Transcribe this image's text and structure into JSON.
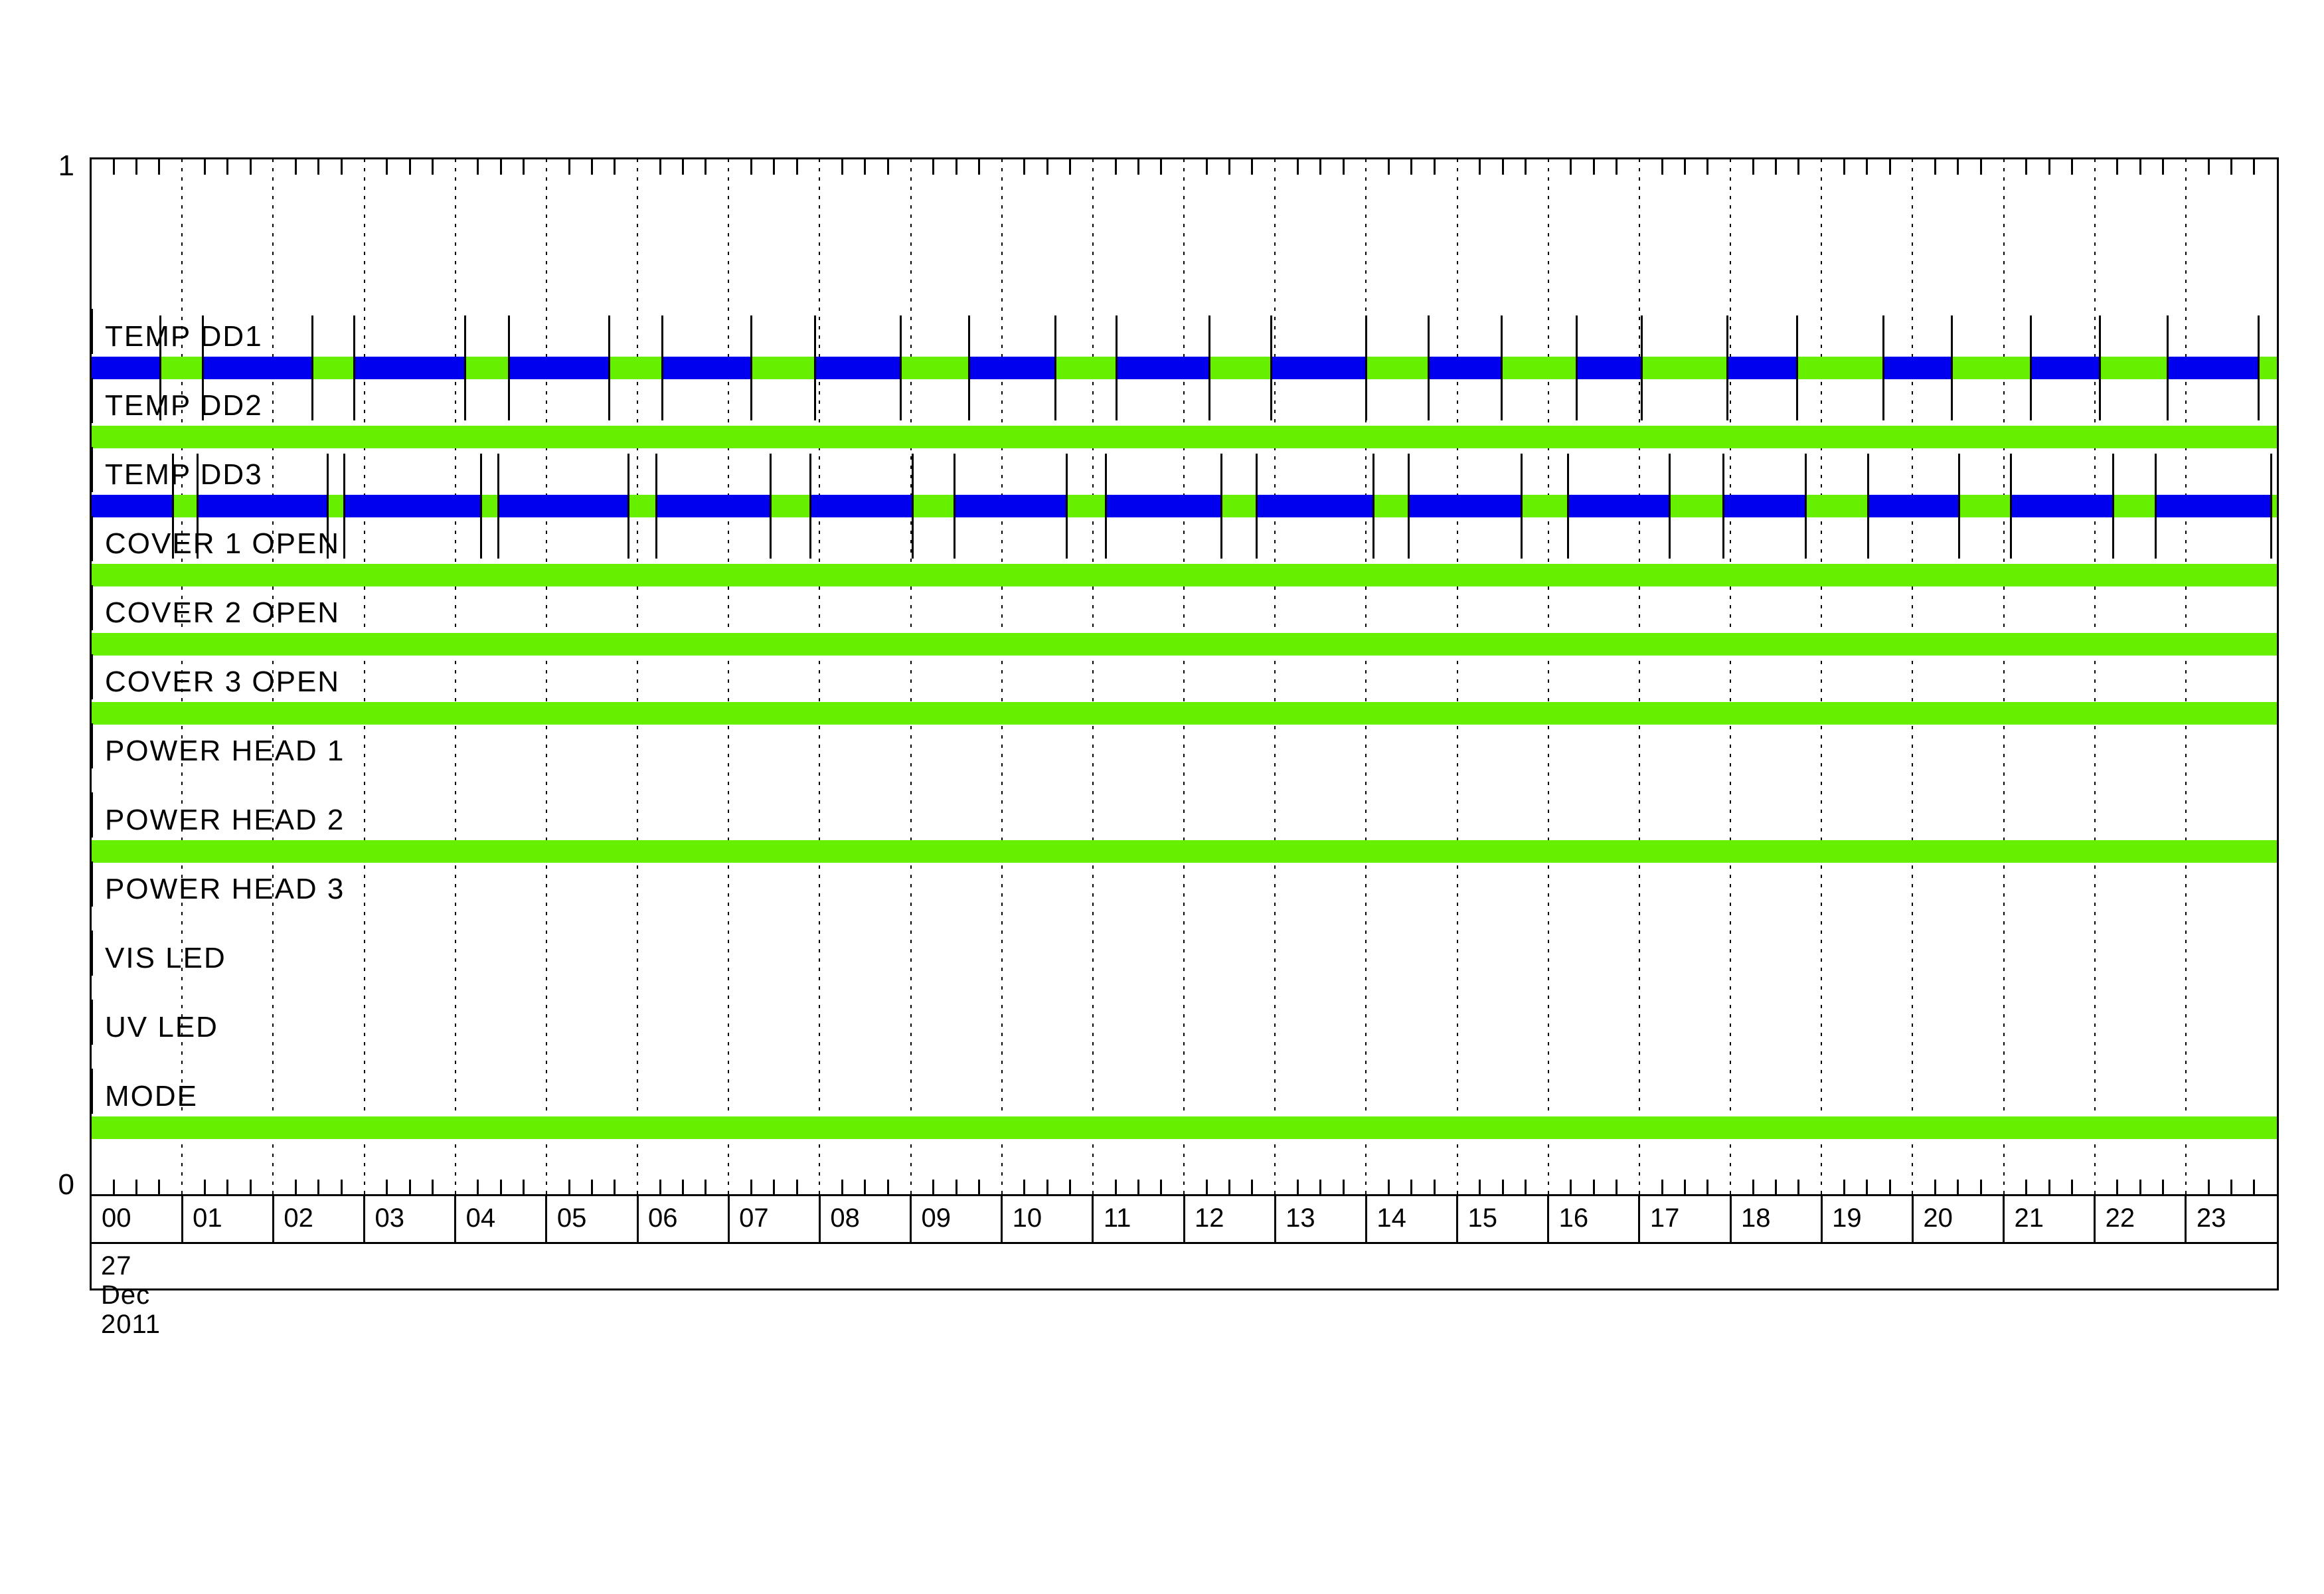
{
  "y_axis": {
    "top_label": "1",
    "bottom_label": "0"
  },
  "x_axis": {
    "hour_labels": [
      "00",
      "01",
      "02",
      "03",
      "04",
      "05",
      "06",
      "07",
      "08",
      "09",
      "10",
      "11",
      "12",
      "13",
      "14",
      "15",
      "16",
      "17",
      "18",
      "19",
      "20",
      "21",
      "22",
      "23"
    ],
    "date_label": "27 Dec 2011"
  },
  "colors": {
    "green": "#66F000",
    "blue": "#0000EE",
    "line": "#000000"
  },
  "chart_data": {
    "type": "status-timeline",
    "date": "27 Dec 2011",
    "x_range_hours": [
      0,
      24
    ],
    "x_tick_interval_hours": 1,
    "x_minor_tick_interval_hours": 0.25,
    "ylim": [
      0,
      1
    ],
    "grid": "dotted-hourly",
    "rows": [
      {
        "label": "TEMP DD1",
        "segments": [
          {
            "s": 0,
            "e": 0.76,
            "c": "blue"
          },
          {
            "s": 0.76,
            "e": 1.23,
            "c": "green"
          },
          {
            "s": 1.23,
            "e": 2.43,
            "c": "blue"
          },
          {
            "s": 2.43,
            "e": 2.89,
            "c": "green"
          },
          {
            "s": 2.89,
            "e": 4.11,
            "c": "blue"
          },
          {
            "s": 4.11,
            "e": 4.59,
            "c": "green"
          },
          {
            "s": 4.59,
            "e": 5.69,
            "c": "blue"
          },
          {
            "s": 5.69,
            "e": 6.27,
            "c": "green"
          },
          {
            "s": 6.27,
            "e": 7.25,
            "c": "blue"
          },
          {
            "s": 7.25,
            "e": 7.95,
            "c": "green"
          },
          {
            "s": 7.95,
            "e": 8.89,
            "c": "blue"
          },
          {
            "s": 8.89,
            "e": 9.64,
            "c": "green"
          },
          {
            "s": 9.64,
            "e": 10.59,
            "c": "blue"
          },
          {
            "s": 10.59,
            "e": 11.26,
            "c": "green"
          },
          {
            "s": 11.26,
            "e": 12.28,
            "c": "blue"
          },
          {
            "s": 12.28,
            "e": 12.96,
            "c": "green"
          },
          {
            "s": 12.96,
            "e": 14.0,
            "c": "blue"
          },
          {
            "s": 14.0,
            "e": 14.69,
            "c": "green"
          },
          {
            "s": 14.69,
            "e": 15.49,
            "c": "blue"
          },
          {
            "s": 15.49,
            "e": 16.31,
            "c": "green"
          },
          {
            "s": 16.31,
            "e": 17.03,
            "c": "blue"
          },
          {
            "s": 17.03,
            "e": 17.97,
            "c": "green"
          },
          {
            "s": 17.97,
            "e": 18.73,
            "c": "blue"
          },
          {
            "s": 18.73,
            "e": 19.68,
            "c": "green"
          },
          {
            "s": 19.68,
            "e": 20.43,
            "c": "blue"
          },
          {
            "s": 20.43,
            "e": 21.3,
            "c": "green"
          },
          {
            "s": 21.3,
            "e": 22.06,
            "c": "blue"
          },
          {
            "s": 22.06,
            "e": 22.8,
            "c": "green"
          },
          {
            "s": 22.8,
            "e": 23.8,
            "c": "blue"
          },
          {
            "s": 23.8,
            "e": 24,
            "c": "green"
          }
        ]
      },
      {
        "label": "TEMP DD2",
        "segments": [
          {
            "s": 0,
            "e": 24,
            "c": "green"
          }
        ]
      },
      {
        "label": "TEMP DD3",
        "segments": [
          {
            "s": 0,
            "e": 0.9,
            "c": "blue"
          },
          {
            "s": 0.9,
            "e": 1.17,
            "c": "green"
          },
          {
            "s": 1.17,
            "e": 2.6,
            "c": "blue"
          },
          {
            "s": 2.6,
            "e": 2.78,
            "c": "green"
          },
          {
            "s": 2.78,
            "e": 4.28,
            "c": "blue"
          },
          {
            "s": 4.28,
            "e": 4.47,
            "c": "green"
          },
          {
            "s": 4.47,
            "e": 5.9,
            "c": "blue"
          },
          {
            "s": 5.9,
            "e": 6.21,
            "c": "green"
          },
          {
            "s": 6.21,
            "e": 7.46,
            "c": "blue"
          },
          {
            "s": 7.46,
            "e": 7.9,
            "c": "green"
          },
          {
            "s": 7.9,
            "e": 9.02,
            "c": "blue"
          },
          {
            "s": 9.02,
            "e": 9.48,
            "c": "green"
          },
          {
            "s": 9.48,
            "e": 10.71,
            "c": "blue"
          },
          {
            "s": 10.71,
            "e": 11.14,
            "c": "green"
          },
          {
            "s": 11.14,
            "e": 12.41,
            "c": "blue"
          },
          {
            "s": 12.41,
            "e": 12.8,
            "c": "green"
          },
          {
            "s": 12.8,
            "e": 14.08,
            "c": "blue"
          },
          {
            "s": 14.08,
            "e": 14.47,
            "c": "green"
          },
          {
            "s": 14.47,
            "e": 15.71,
            "c": "blue"
          },
          {
            "s": 15.71,
            "e": 16.22,
            "c": "green"
          },
          {
            "s": 16.22,
            "e": 17.33,
            "c": "blue"
          },
          {
            "s": 17.33,
            "e": 17.92,
            "c": "green"
          },
          {
            "s": 17.92,
            "e": 18.83,
            "c": "blue"
          },
          {
            "s": 18.83,
            "e": 19.51,
            "c": "green"
          },
          {
            "s": 19.51,
            "e": 20.51,
            "c": "blue"
          },
          {
            "s": 20.51,
            "e": 21.08,
            "c": "green"
          },
          {
            "s": 21.08,
            "e": 22.2,
            "c": "blue"
          },
          {
            "s": 22.2,
            "e": 22.67,
            "c": "green"
          },
          {
            "s": 22.67,
            "e": 23.94,
            "c": "blue"
          },
          {
            "s": 23.94,
            "e": 24,
            "c": "green"
          }
        ]
      },
      {
        "label": "COVER 1 OPEN",
        "segments": [
          {
            "s": 0,
            "e": 24,
            "c": "green"
          }
        ]
      },
      {
        "label": "COVER 2 OPEN",
        "segments": [
          {
            "s": 0,
            "e": 24,
            "c": "green"
          }
        ]
      },
      {
        "label": "COVER 3 OPEN",
        "segments": [
          {
            "s": 0,
            "e": 24,
            "c": "green"
          }
        ]
      },
      {
        "label": "POWER HEAD 1",
        "segments": []
      },
      {
        "label": "POWER HEAD 2",
        "segments": [
          {
            "s": 0,
            "e": 24,
            "c": "green"
          }
        ]
      },
      {
        "label": "POWER HEAD 3",
        "segments": []
      },
      {
        "label": "VIS LED",
        "segments": []
      },
      {
        "label": "UV LED",
        "segments": []
      },
      {
        "label": "MODE",
        "segments": [
          {
            "s": 0,
            "e": 24,
            "c": "green"
          }
        ]
      }
    ]
  }
}
